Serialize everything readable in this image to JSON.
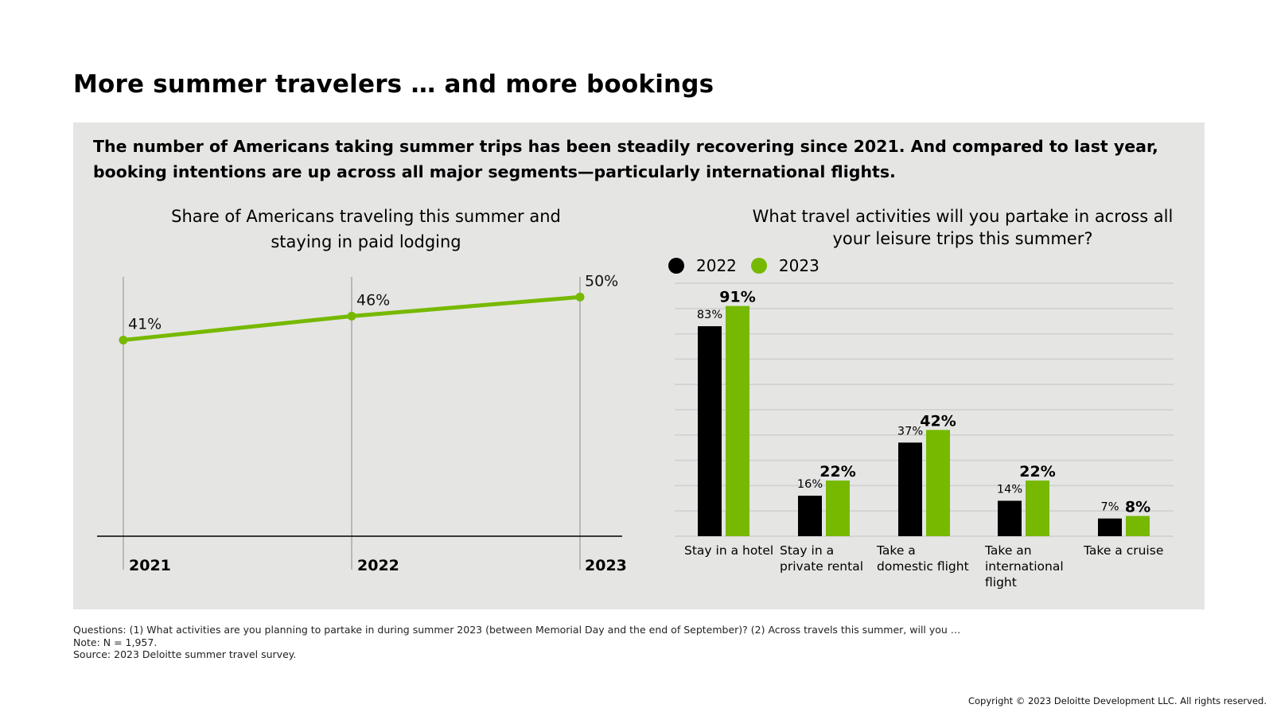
{
  "page": {
    "title": "More summer travelers … and more bookings",
    "intro": "The number of Americans taking summer trips has been steadily recovering since 2021. And compared to last year, booking intentions are up across all major segments—particularly international flights."
  },
  "footnotes": {
    "questions": "Questions: (1) What activities are you planning to partake in during summer 2023 (between Memorial Day and the end of September)? (2) Across travels this summer, will you …",
    "note": "Note: N = 1,957.",
    "source": "Source: 2023 Deloitte summer travel survey."
  },
  "copyright": "Copyright © 2023 Deloitte Development LLC. All rights reserved.",
  "colors": {
    "series_2022": "#000000",
    "series_2023": "#76b900",
    "panel": "#e5e5e4"
  },
  "chart_data": [
    {
      "type": "line",
      "title": "Share of Americans traveling this summer and staying in paid lodging",
      "x": [
        "2021",
        "2022",
        "2023"
      ],
      "values": [
        41,
        46,
        50
      ],
      "labels": [
        "41%",
        "46%",
        "50%"
      ],
      "ylim": [
        0,
        60
      ],
      "color": "#76b900"
    },
    {
      "type": "bar",
      "title": "What travel activities will you partake in across all your leisure trips this summer?",
      "categories": [
        "Stay in a hotel",
        "Stay in a private rental",
        "Take a domestic flight",
        "Take an international flight",
        "Take a cruise"
      ],
      "series": [
        {
          "name": "2022",
          "color": "#000000",
          "values": [
            83,
            16,
            37,
            14,
            7
          ],
          "labels": [
            "83%",
            "16%",
            "37%",
            "14%",
            "7%"
          ]
        },
        {
          "name": "2023",
          "color": "#76b900",
          "values": [
            91,
            22,
            42,
            22,
            8
          ],
          "labels": [
            "91%",
            "22%",
            "42%",
            "22%",
            "8%"
          ]
        }
      ],
      "ylim": [
        0,
        100
      ],
      "grid": true,
      "legend": "top-left"
    }
  ]
}
